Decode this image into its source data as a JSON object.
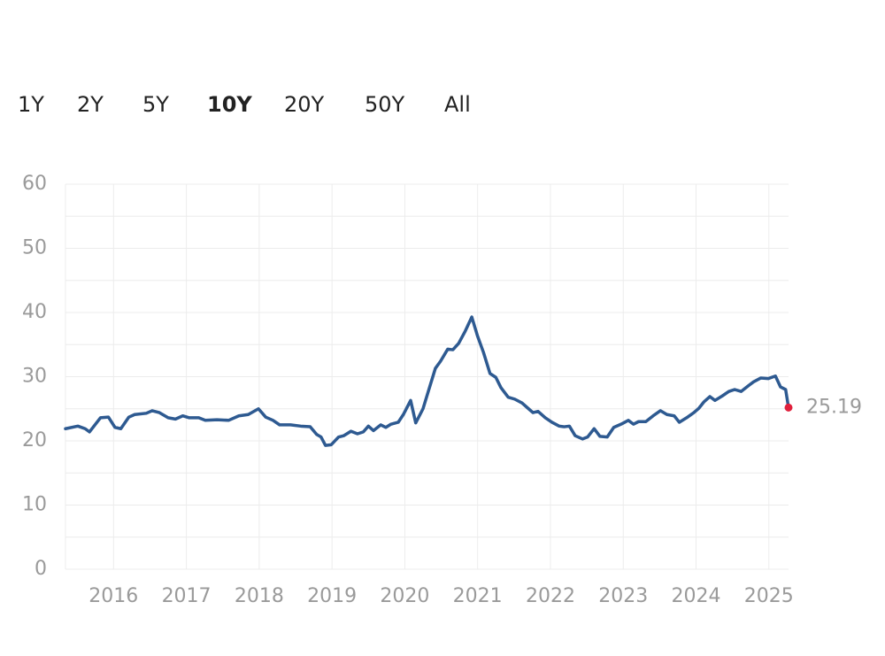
{
  "tabs": [
    "1Y",
    "2Y",
    "5Y",
    "10Y",
    "20Y",
    "50Y",
    "All"
  ],
  "active_tab": 3,
  "chart_data": {
    "type": "line",
    "x": [
      2015.34,
      2015.51,
      2015.61,
      2015.67,
      2015.82,
      2015.93,
      2016.02,
      2016.1,
      2016.21,
      2016.29,
      2016.45,
      2016.53,
      2016.63,
      2016.75,
      2016.85,
      2016.95,
      2017.04,
      2017.17,
      2017.26,
      2017.42,
      2017.58,
      2017.72,
      2017.85,
      2017.99,
      2018.09,
      2018.19,
      2018.28,
      2018.43,
      2018.57,
      2018.7,
      2018.79,
      2018.85,
      2018.91,
      2018.99,
      2019.09,
      2019.16,
      2019.26,
      2019.35,
      2019.43,
      2019.5,
      2019.57,
      2019.67,
      2019.74,
      2019.81,
      2019.91,
      2019.98,
      2020.08,
      2020.15,
      2020.25,
      2020.32,
      2020.42,
      2020.49,
      2020.59,
      2020.66,
      2020.74,
      2020.83,
      2020.92,
      2021.0,
      2021.08,
      2021.17,
      2021.25,
      2021.32,
      2021.42,
      2021.51,
      2021.61,
      2021.7,
      2021.76,
      2021.83,
      2021.93,
      2022.02,
      2022.12,
      2022.19,
      2022.26,
      2022.34,
      2022.44,
      2022.51,
      2022.6,
      2022.68,
      2022.78,
      2022.87,
      2022.97,
      2023.07,
      2023.14,
      2023.21,
      2023.31,
      2023.41,
      2023.51,
      2023.6,
      2023.7,
      2023.77,
      2023.87,
      2023.97,
      2024.04,
      2024.11,
      2024.19,
      2024.26,
      2024.36,
      2024.45,
      2024.53,
      2024.62,
      2024.72,
      2024.79,
      2024.89,
      2024.99,
      2025.09,
      2025.16,
      2025.23,
      2025.27
    ],
    "series": [
      {
        "color": "#2e5a91",
        "values": [
          21.9,
          22.3,
          21.9,
          21.4,
          23.6,
          23.7,
          22.1,
          21.9,
          23.7,
          24.1,
          24.3,
          24.7,
          24.4,
          23.6,
          23.4,
          23.9,
          23.6,
          23.6,
          23.2,
          23.3,
          23.2,
          23.9,
          24.1,
          25.0,
          23.7,
          23.2,
          22.5,
          22.5,
          22.3,
          22.2,
          21.0,
          20.6,
          19.3,
          19.4,
          20.6,
          20.8,
          21.5,
          21.1,
          21.4,
          22.3,
          21.6,
          22.5,
          22.1,
          22.6,
          22.9,
          24.1,
          26.3,
          22.8,
          25.0,
          27.6,
          31.3,
          32.4,
          34.3,
          34.2,
          35.2,
          37.1,
          39.3,
          36.3,
          33.8,
          30.5,
          29.9,
          28.3,
          26.8,
          26.5,
          25.9,
          25.0,
          24.4,
          24.6,
          23.6,
          22.9,
          22.3,
          22.2,
          22.3,
          20.8,
          20.3,
          20.6,
          21.9,
          20.7,
          20.6,
          22.1,
          22.6,
          23.2,
          22.6,
          23.0,
          23.0,
          23.9,
          24.7,
          24.1,
          23.9,
          22.9,
          23.6,
          24.4,
          25.1,
          26.1,
          26.9,
          26.3,
          27.0,
          27.7,
          28.0,
          27.7,
          28.6,
          29.2,
          29.8,
          29.7,
          30.1,
          28.4,
          28.0,
          25.19
        ]
      }
    ],
    "last_point_color": "#e0203c",
    "xlim": [
      2015.34,
      2025.27
    ],
    "xticks": [
      2016,
      2017,
      2018,
      2019,
      2020,
      2021,
      2022,
      2023,
      2024,
      2025
    ],
    "ylim": [
      0,
      60
    ],
    "yticks": [
      0,
      10,
      20,
      30,
      40,
      50,
      60
    ],
    "minor_yticks": [
      5,
      15,
      25,
      35,
      45,
      55
    ],
    "grid": true
  }
}
